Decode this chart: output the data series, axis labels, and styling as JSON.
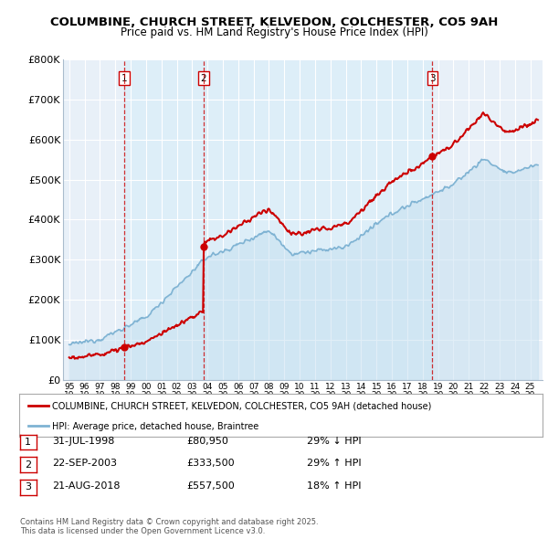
{
  "title": "COLUMBINE, CHURCH STREET, KELVEDON, COLCHESTER, CO5 9AH",
  "subtitle": "Price paid vs. HM Land Registry's House Price Index (HPI)",
  "ylim": [
    0,
    800000
  ],
  "yticks": [
    0,
    100000,
    200000,
    300000,
    400000,
    500000,
    600000,
    700000,
    800000
  ],
  "ytick_labels": [
    "£0",
    "£100K",
    "£200K",
    "£300K",
    "£400K",
    "£500K",
    "£600K",
    "£700K",
    "£800K"
  ],
  "xlim_start": 1994.6,
  "xlim_end": 2025.8,
  "sale_color": "#cc0000",
  "hpi_color": "#7fb3d3",
  "hpi_fill_color": "#ddeeff",
  "dashed_line_color": "#cc0000",
  "transaction_dates": [
    1998.575,
    2003.728,
    2018.638
  ],
  "transaction_prices": [
    80950,
    333500,
    557500
  ],
  "transaction_labels": [
    "1",
    "2",
    "3"
  ],
  "legend_sale_label": "COLUMBINE, CHURCH STREET, KELVEDON, COLCHESTER, CO5 9AH (detached house)",
  "legend_hpi_label": "HPI: Average price, detached house, Braintree",
  "table_rows": [
    {
      "num": "1",
      "date": "31-JUL-1998",
      "price": "£80,950",
      "hpi": "29% ↓ HPI"
    },
    {
      "num": "2",
      "date": "22-SEP-2003",
      "price": "£333,500",
      "hpi": "29% ↑ HPI"
    },
    {
      "num": "3",
      "date": "21-AUG-2018",
      "price": "£557,500",
      "hpi": "18% ↑ HPI"
    }
  ],
  "footnote": "Contains HM Land Registry data © Crown copyright and database right 2025.\nThis data is licensed under the Open Government Licence v3.0.",
  "background_color": "#ffffff",
  "grid_color": "#ccddee"
}
